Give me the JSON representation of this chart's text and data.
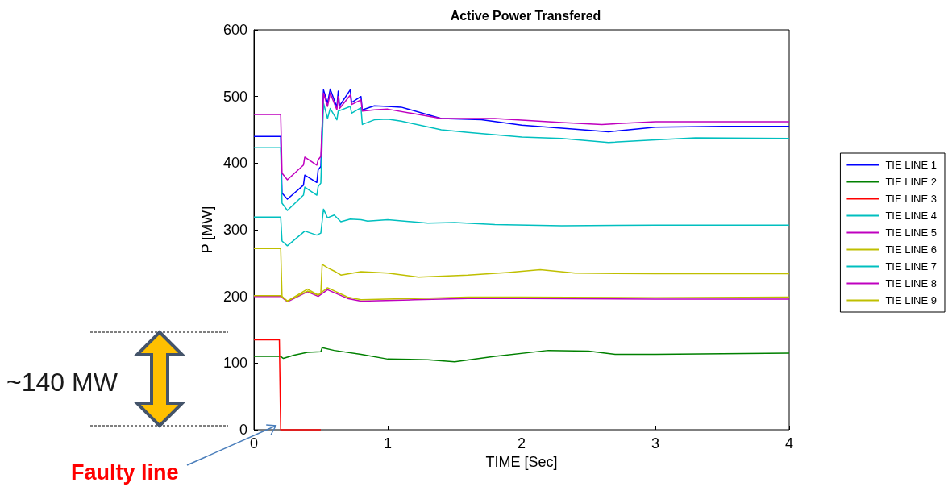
{
  "chart_data": {
    "type": "line",
    "title": "Active Power Transfered",
    "xlabel": "TIME [Sec]",
    "ylabel": "P [MW]",
    "xlim": [
      0,
      4
    ],
    "xticks": [
      0,
      1,
      2,
      3,
      4
    ],
    "ylim": [
      0,
      600
    ],
    "yticks": [
      0,
      100,
      200,
      300,
      400,
      500,
      600
    ],
    "grid": false,
    "legend": "right",
    "marker": "none",
    "line_style": "solid",
    "annotations": [
      "~140 MW",
      {
        "text": "Faulty line",
        "x": 0.2,
        "y": 0
      }
    ],
    "series": [
      {
        "name": "TIE LINE 1",
        "color": "#0000ff",
        "x": [
          0,
          0.2,
          0.21,
          0.25,
          0.37,
          0.38,
          0.47,
          0.48,
          0.5,
          0.52,
          0.55,
          0.57,
          0.62,
          0.63,
          0.64,
          0.72,
          0.73,
          0.8,
          0.81,
          0.9,
          1.0,
          1.1,
          1.4,
          1.7,
          2.0,
          2.4,
          2.65,
          3.0,
          3.5,
          4.0
        ],
        "values": [
          440,
          440,
          355,
          346,
          367,
          382,
          371,
          390,
          395,
          510,
          490,
          511,
          484,
          508,
          486,
          510,
          491,
          500,
          480,
          486,
          485,
          484,
          467,
          465,
          457,
          451,
          447,
          454,
          455,
          455
        ]
      },
      {
        "name": "TIE LINE 2",
        "color": "#008000",
        "x": [
          0,
          0.2,
          0.22,
          0.3,
          0.4,
          0.5,
          0.51,
          0.6,
          0.8,
          1.0,
          1.3,
          1.5,
          1.8,
          2.2,
          2.5,
          2.7,
          3.0,
          3.5,
          4.0
        ],
        "values": [
          110,
          110,
          107,
          112,
          116,
          117,
          123,
          119,
          113,
          106,
          105,
          102,
          110,
          119,
          118,
          113,
          113,
          114,
          115
        ]
      },
      {
        "name": "TIE LINE 3",
        "color": "#ff0000",
        "x": [
          0,
          0.19,
          0.2,
          0.5
        ],
        "values": [
          135,
          135,
          0,
          0
        ]
      },
      {
        "name": "TIE LINE 4",
        "color": "#00bfbf",
        "x": [
          0,
          0.2,
          0.21,
          0.25,
          0.37,
          0.38,
          0.47,
          0.48,
          0.5,
          0.52,
          0.55,
          0.57,
          0.62,
          0.63,
          0.72,
          0.73,
          0.8,
          0.81,
          0.9,
          1.0,
          1.1,
          1.4,
          1.6,
          2.0,
          2.3,
          2.65,
          3.0,
          3.3,
          4.0
        ],
        "values": [
          423,
          423,
          340,
          329,
          352,
          364,
          352,
          365,
          370,
          490,
          467,
          482,
          465,
          478,
          485,
          475,
          483,
          458,
          465,
          466,
          463,
          450,
          446,
          439,
          437,
          431,
          435,
          438,
          437
        ]
      },
      {
        "name": "TIE LINE 5",
        "color": "#bf00bf",
        "x": [
          0,
          0.2,
          0.25,
          0.4,
          0.48,
          0.55,
          0.7,
          0.8,
          1.2,
          1.6,
          2.0,
          3.0,
          4.0
        ],
        "values": [
          200,
          200,
          192,
          207,
          200,
          210,
          197,
          193,
          195,
          197,
          197,
          196,
          196
        ]
      },
      {
        "name": "TIE LINE 6",
        "color": "#bfbf00",
        "x": [
          0,
          0.2,
          0.25,
          0.4,
          0.48,
          0.55,
          0.7,
          0.8,
          1.2,
          1.6,
          2.0,
          3.0,
          4.0
        ],
        "values": [
          201,
          201,
          193,
          211,
          202,
          213,
          199,
          195,
          197,
          199,
          199,
          198,
          199
        ]
      },
      {
        "name": "TIE LINE 7",
        "color": "#00bfbf",
        "x": [
          0,
          0.2,
          0.21,
          0.25,
          0.38,
          0.47,
          0.5,
          0.52,
          0.55,
          0.6,
          0.65,
          0.72,
          0.8,
          0.85,
          1.0,
          1.3,
          1.5,
          1.8,
          2.3,
          3.0,
          4.0
        ],
        "values": [
          319,
          319,
          283,
          276,
          298,
          292,
          295,
          331,
          318,
          322,
          312,
          316,
          315,
          313,
          315,
          310,
          311,
          308,
          306,
          307,
          307
        ]
      },
      {
        "name": "TIE LINE 8",
        "color": "#bf00bf",
        "x": [
          0,
          0.2,
          0.21,
          0.25,
          0.37,
          0.38,
          0.47,
          0.48,
          0.5,
          0.52,
          0.55,
          0.57,
          0.62,
          0.63,
          0.64,
          0.72,
          0.73,
          0.8,
          0.81,
          0.9,
          1.0,
          1.4,
          1.8,
          2.3,
          2.6,
          3.0,
          4.0
        ],
        "values": [
          473,
          473,
          385,
          375,
          397,
          409,
          397,
          405,
          410,
          505,
          485,
          505,
          480,
          500,
          482,
          502,
          488,
          495,
          478,
          480,
          481,
          467,
          467,
          461,
          458,
          462,
          462
        ]
      },
      {
        "name": "TIE LINE 9",
        "color": "#bfbf00",
        "x": [
          0,
          0.2,
          0.21,
          0.25,
          0.4,
          0.48,
          0.5,
          0.51,
          0.55,
          0.6,
          0.65,
          0.8,
          1.0,
          1.23,
          1.6,
          1.9,
          2.14,
          2.4,
          3.0,
          4.0
        ],
        "values": [
          272,
          272,
          200,
          193,
          208,
          202,
          205,
          248,
          243,
          238,
          232,
          237,
          235,
          229,
          232,
          236,
          240,
          235,
          234,
          234
        ]
      }
    ]
  }
}
